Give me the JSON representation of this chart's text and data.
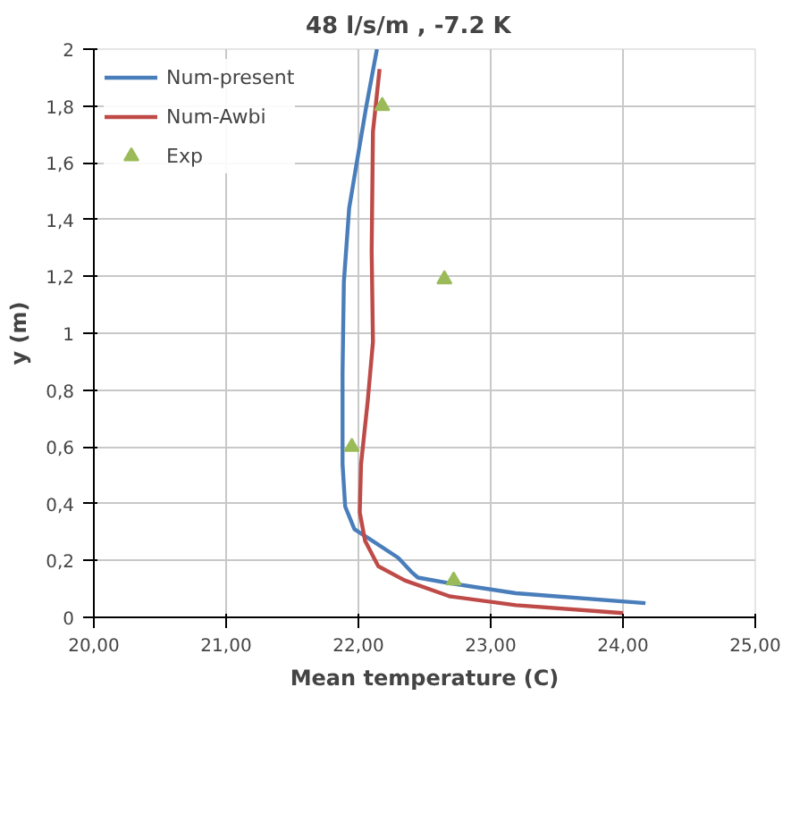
{
  "chart_data": {
    "type": "line",
    "title": "48 l/s/m   ,   -7.2 K",
    "xlabel": "Mean temperature (C)",
    "ylabel": "y (m)",
    "xlim": [
      20,
      25
    ],
    "ylim": [
      0,
      2
    ],
    "xticks": [
      {
        "value": 20,
        "label": "20,00"
      },
      {
        "value": 21,
        "label": "21,00"
      },
      {
        "value": 22,
        "label": "22,00"
      },
      {
        "value": 23,
        "label": "23,00"
      },
      {
        "value": 24,
        "label": "24,00"
      },
      {
        "value": 25,
        "label": "25,00"
      }
    ],
    "yticks": [
      0,
      {
        "value": 0.2,
        "label": "0,2"
      },
      {
        "value": 0.4,
        "label": "0,4"
      },
      {
        "value": 0.6,
        "label": "0,6"
      },
      {
        "value": 0.8,
        "label": "0,8"
      },
      1,
      {
        "value": 1.2,
        "label": "1,2"
      },
      {
        "value": 1.4,
        "label": "1,4"
      },
      {
        "value": 1.6,
        "label": "1,6"
      },
      {
        "value": 1.8,
        "label": "1,8"
      },
      2
    ],
    "grid": true,
    "legend": "top left",
    "series": [
      {
        "name": "Num-present",
        "color": "#4a7ebb",
        "x": [
          22.14,
          22.06,
          21.98,
          21.93,
          21.89,
          21.88,
          21.88,
          21.9,
          21.97,
          22.07,
          22.3,
          22.4,
          22.45,
          22.69,
          23.19,
          24.17
        ],
        "values": [
          2.0,
          1.8,
          1.58,
          1.44,
          1.18,
          0.86,
          0.54,
          0.39,
          0.31,
          0.28,
          0.21,
          0.16,
          0.14,
          0.12,
          0.085,
          0.05
        ]
      },
      {
        "name": "Num-Awbi",
        "color": "#be4b48",
        "x": [
          22.16,
          22.11,
          22.1,
          22.11,
          22.07,
          22.02,
          22.01,
          22.05,
          22.15,
          22.35,
          22.69,
          23.19,
          24.0
        ],
        "values": [
          1.93,
          1.71,
          1.29,
          0.97,
          0.76,
          0.54,
          0.37,
          0.27,
          0.18,
          0.13,
          0.074,
          0.043,
          0.015
        ]
      },
      {
        "name": "Exp",
        "type": "scatter",
        "marker": "triangle",
        "color": "#9bbb59",
        "x": [
          22.18,
          22.65,
          21.95,
          22.72
        ],
        "values": [
          1.8,
          1.19,
          0.6,
          0.13
        ]
      }
    ]
  }
}
